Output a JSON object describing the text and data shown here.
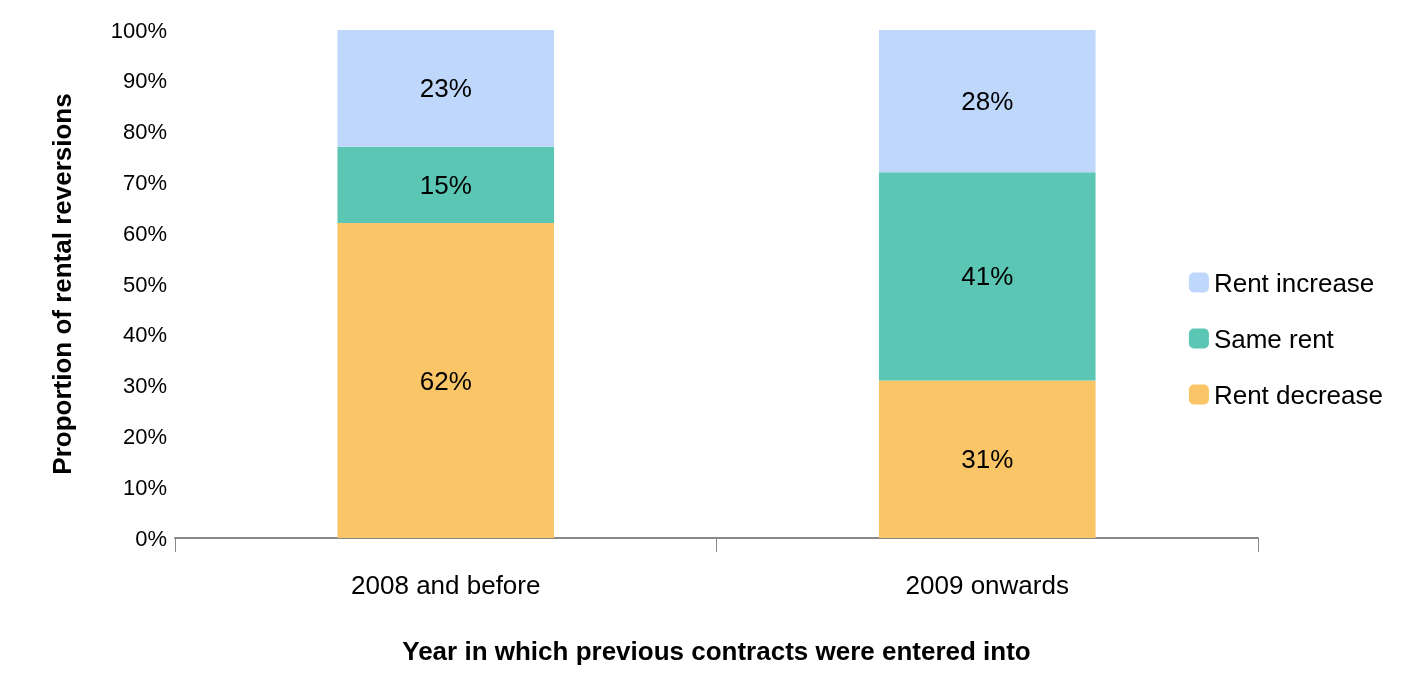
{
  "chart_data": {
    "type": "bar",
    "stacked": true,
    "xlabel": "Year in which previous contracts were entered into",
    "ylabel": "Proportion of rental reversions",
    "categories": [
      "2008 and before",
      "2009 onwards"
    ],
    "series": [
      {
        "name": "Rent decrease",
        "color": "#fac566",
        "values": [
          62,
          31
        ],
        "value_labels": [
          "62%",
          "31%"
        ]
      },
      {
        "name": "Same rent",
        "color": "#5bc6b3",
        "values": [
          15,
          41
        ],
        "value_labels": [
          "15%",
          "41%"
        ]
      },
      {
        "name": "Rent increase",
        "color": "#bfd7fb",
        "values": [
          23,
          28
        ],
        "value_labels": [
          "23%",
          "28%"
        ]
      }
    ],
    "ylim": [
      0,
      100
    ],
    "yticks": [
      {
        "value": 0,
        "label": "0%"
      },
      {
        "value": 10,
        "label": "10%"
      },
      {
        "value": 20,
        "label": "20%"
      },
      {
        "value": 30,
        "label": "30%"
      },
      {
        "value": 40,
        "label": "40%"
      },
      {
        "value": 50,
        "label": "50%"
      },
      {
        "value": 60,
        "label": "60%"
      },
      {
        "value": 70,
        "label": "70%"
      },
      {
        "value": 80,
        "label": "80%"
      },
      {
        "value": 90,
        "label": "90%"
      },
      {
        "value": 100,
        "label": "100%"
      }
    ],
    "grid": false,
    "legend": "right"
  }
}
